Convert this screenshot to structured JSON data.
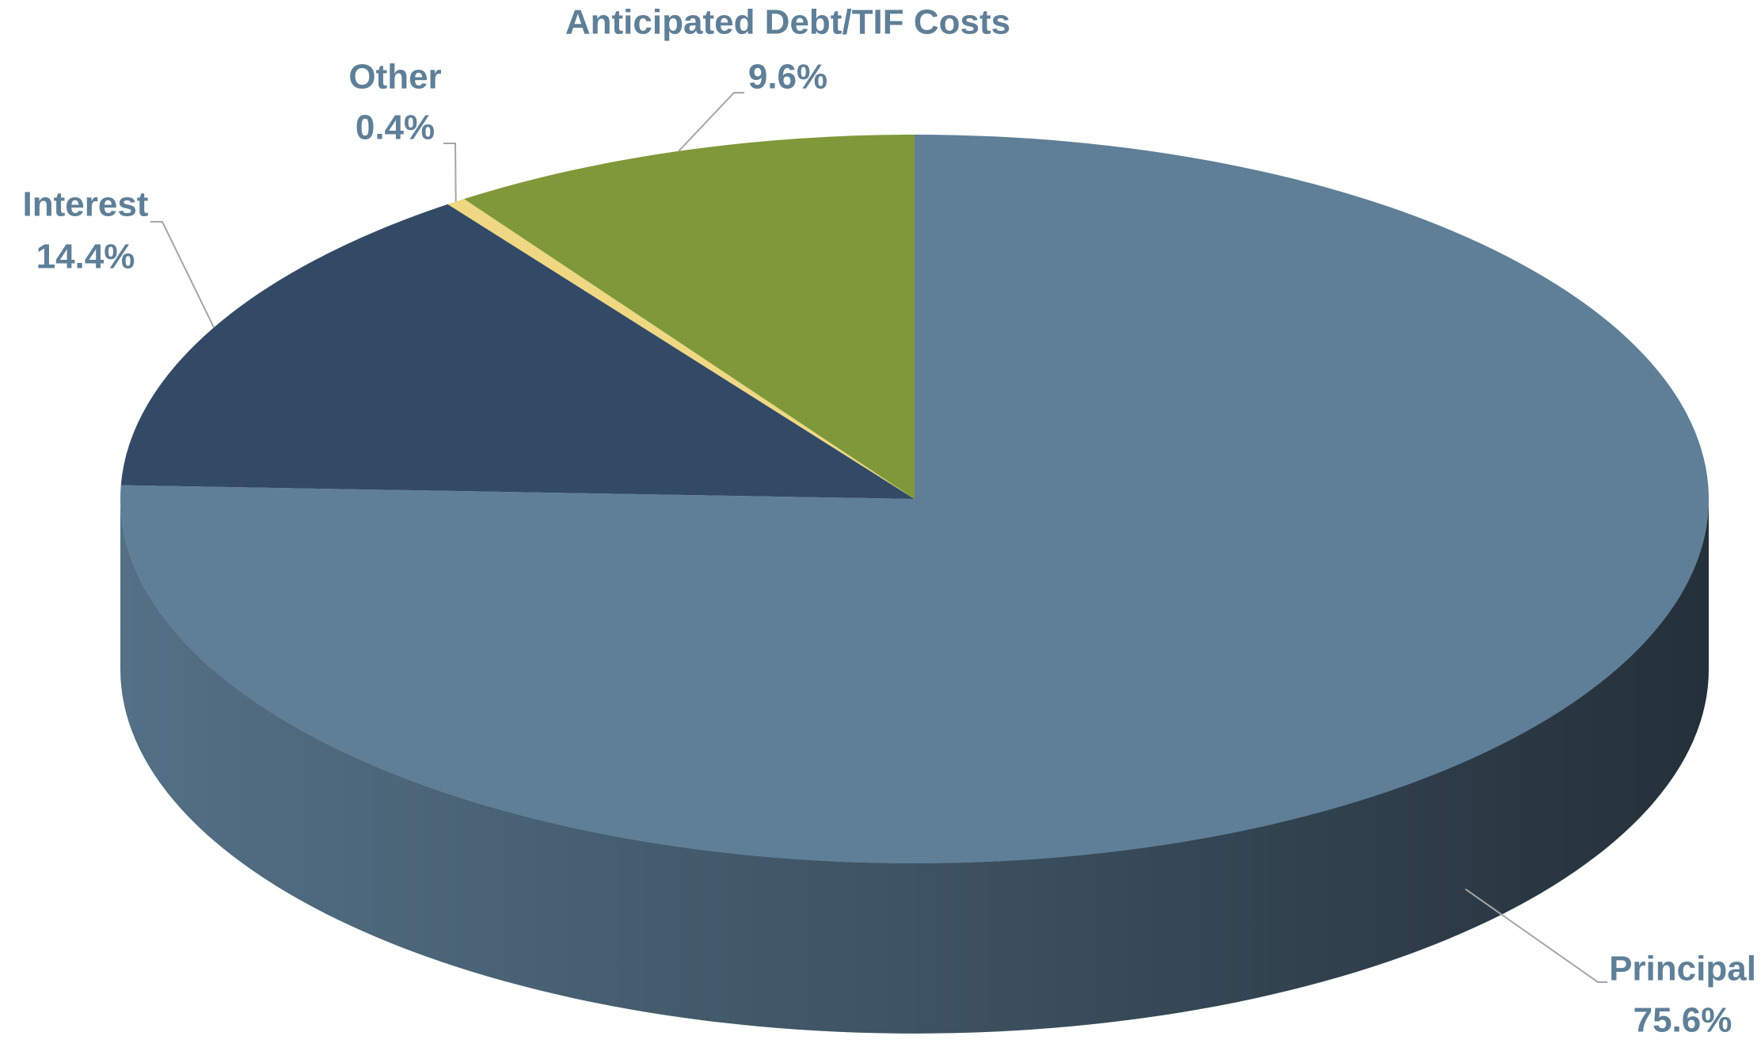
{
  "chart_data": {
    "type": "pie",
    "categories": [
      "Principal",
      "Interest",
      "Other",
      "Anticipated Debt/TIF Costs"
    ],
    "values": [
      75.6,
      14.4,
      0.4,
      9.6
    ],
    "value_labels": [
      "75.6%",
      "14.4%",
      "0.4%",
      "9.6%"
    ],
    "colors": [
      "#5f7f98",
      "#334a66",
      "#f0d882",
      "#7f993a"
    ]
  }
}
